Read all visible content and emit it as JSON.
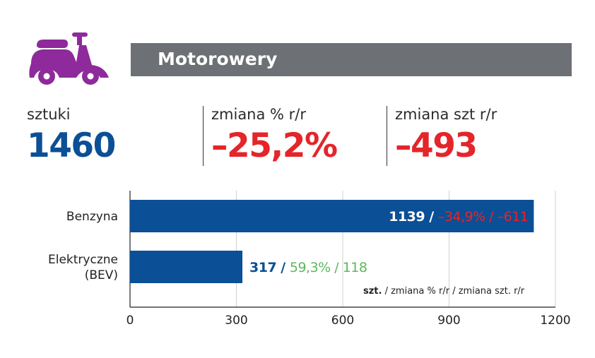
{
  "header": {
    "icon": "scooter-icon",
    "icon_color": "#8e2a9b",
    "title": "Motorowery",
    "bar_color": "#6d7175"
  },
  "stats": [
    {
      "label": "sztuki",
      "value": "1460",
      "color": "#0b4f96"
    },
    {
      "label": "zmiana % r/r",
      "value": "–25,2%",
      "color": "#e4252a"
    },
    {
      "label": "zmiana szt r/r",
      "value": "–493",
      "color": "#e4252a"
    }
  ],
  "chart_data": {
    "type": "bar",
    "orientation": "horizontal",
    "categories": [
      "Benzyna",
      "Elektryczne\n(BEV)"
    ],
    "values": [
      1139,
      317
    ],
    "change_pct": [
      "–34,9%",
      "59,3%"
    ],
    "change_units": [
      "–611",
      "118"
    ],
    "bar_color": "#0b4f96",
    "negative_color": "#e4252a",
    "positive_color": "#5cb85c",
    "xlim": [
      0,
      1200
    ],
    "ticks": [
      "0",
      "300",
      "600",
      "900",
      "1200"
    ],
    "tick_values": [
      0,
      300,
      600,
      900,
      1200
    ],
    "grid": true,
    "legend_bold": "szt.",
    "legend_rest": " / zmiana % r/r / zmiana szt. r/r"
  }
}
